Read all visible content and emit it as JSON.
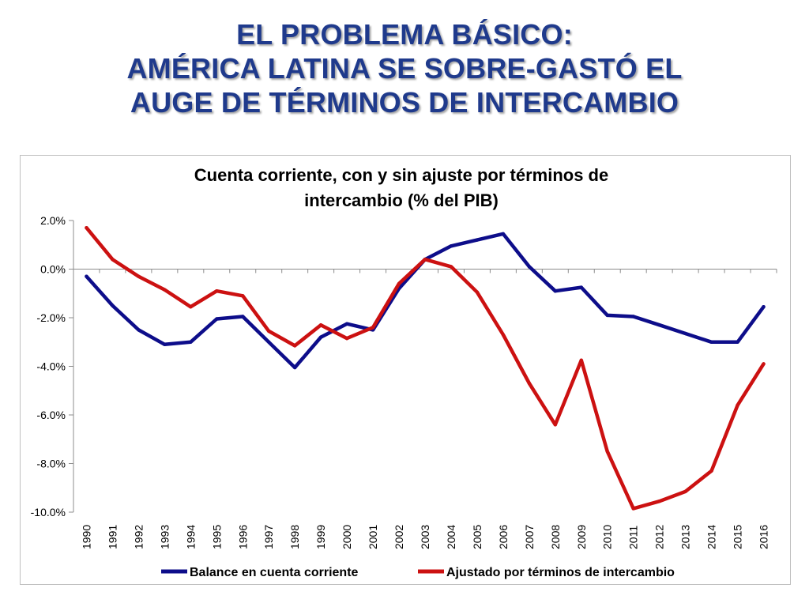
{
  "slide": {
    "title_lines": [
      "EL PROBLEMA BÁSICO:",
      "AMÉRICA LATINA SE SOBRE-GASTÓ EL",
      "AUGE DE TÉRMINOS DE INTERCAMBIO"
    ]
  },
  "colors": {
    "title": "#1f3a8c",
    "series_balance": "#0d0d8a",
    "series_adjusted": "#cc1111"
  },
  "chart_data": {
    "type": "line",
    "title_lines": [
      "Cuenta corriente, con y sin ajuste por términos de",
      "intercambio (% del PIB)"
    ],
    "xlabel": "",
    "ylabel": "",
    "ylim": [
      -10,
      2
    ],
    "yticks": [
      2,
      0,
      -2,
      -4,
      -6,
      -8,
      -10
    ],
    "ytick_labels": [
      "2.0%",
      "0.0%",
      "-2.0%",
      "-4.0%",
      "-6.0%",
      "-8.0%",
      "-10.0%"
    ],
    "grid": false,
    "categories": [
      "1990",
      "1991",
      "1992",
      "1993",
      "1994",
      "1995",
      "1996",
      "1997",
      "1998",
      "1999",
      "2000",
      "2001",
      "2002",
      "2003",
      "2004",
      "2005",
      "2006",
      "2007",
      "2008",
      "2009",
      "2010",
      "2011",
      "2012",
      "2013",
      "2014",
      "2015",
      "2016"
    ],
    "series": [
      {
        "name": "Balance en cuenta corriente",
        "color": "#0d0d8a",
        "values": [
          -0.3,
          -1.5,
          -2.5,
          -3.1,
          -3.0,
          -2.05,
          -1.95,
          -3.0,
          -4.05,
          -2.8,
          -2.25,
          -2.5,
          -0.8,
          0.4,
          0.95,
          1.2,
          1.45,
          0.1,
          -0.9,
          -0.75,
          -1.9,
          -1.95,
          -2.3,
          -2.65,
          -3.0,
          -3.0,
          -1.55
        ]
      },
      {
        "name": "Ajustado por términos de intercambio",
        "color": "#cc1111",
        "values": [
          1.7,
          0.4,
          -0.3,
          -0.85,
          -1.55,
          -0.9,
          -1.1,
          -2.55,
          -3.15,
          -2.3,
          -2.85,
          -2.4,
          -0.6,
          0.4,
          0.1,
          -0.95,
          -2.7,
          -4.7,
          -6.4,
          -3.75,
          -7.5,
          -9.85,
          -9.55,
          -9.15,
          -8.3,
          -5.6,
          -3.9
        ]
      }
    ],
    "legend": {
      "position": "bottom",
      "labels": [
        "Balance en cuenta corriente",
        "Ajustado por términos de intercambio"
      ]
    }
  }
}
